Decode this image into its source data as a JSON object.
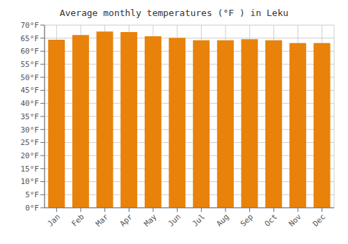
{
  "chart_data": {
    "type": "bar",
    "title": "Average monthly temperatures (°F ) in Leku",
    "categories": [
      "Jan",
      "Feb",
      "Mar",
      "Apr",
      "May",
      "Jun",
      "Jul",
      "Aug",
      "Sep",
      "Oct",
      "Nov",
      "Dec"
    ],
    "values": [
      64.4,
      66.2,
      67.5,
      67.3,
      65.7,
      65.1,
      64.2,
      64.2,
      64.6,
      64.2,
      63.1,
      63.1
    ],
    "color": "#E8820A",
    "ylim": [
      0,
      70
    ],
    "yticks": [
      {
        "value": 0,
        "label": "0°F"
      },
      {
        "value": 5,
        "label": "5°F"
      },
      {
        "value": 10,
        "label": "10°F"
      },
      {
        "value": 15,
        "label": "15°F"
      },
      {
        "value": 20,
        "label": "20°F"
      },
      {
        "value": 25,
        "label": "25°F"
      },
      {
        "value": 30,
        "label": "30°F"
      },
      {
        "value": 35,
        "label": "35°F"
      },
      {
        "value": 40,
        "label": "40°F"
      },
      {
        "value": 45,
        "label": "45°F"
      },
      {
        "value": 50,
        "label": "50°F"
      },
      {
        "value": 55,
        "label": "55°F"
      },
      {
        "value": 60,
        "label": "60°F"
      },
      {
        "value": 65,
        "label": "65°F"
      },
      {
        "value": 70,
        "label": "70°F"
      }
    ],
    "grid": true
  }
}
